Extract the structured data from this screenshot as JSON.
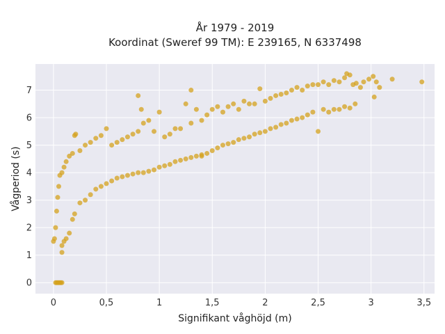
{
  "chart_data": {
    "type": "scatter",
    "title_line1": "År 1979 - 2019",
    "title_line2": "Koordinat (Sweref 99 TM): E 239165, N 6337498",
    "xlabel": "Signifikant våghöjd (m)",
    "ylabel": "Vågperiod (s)",
    "xlim": [
      -0.17,
      3.6
    ],
    "ylim": [
      -0.4,
      7.95
    ],
    "x_ticks": [
      0,
      0.5,
      1,
      1.5,
      2,
      2.5,
      3,
      3.5
    ],
    "x_tick_labels": [
      "0",
      "0,5",
      "1",
      "1,5",
      "2",
      "2,5",
      "3",
      "3,5"
    ],
    "y_ticks": [
      0,
      1,
      2,
      3,
      4,
      5,
      6,
      7
    ],
    "y_tick_labels": [
      "0",
      "1",
      "2",
      "3",
      "4",
      "5",
      "6",
      "7"
    ],
    "grid": true,
    "marker_color": "#D4A21E",
    "background_color": "#E9E9F1",
    "series": [
      {
        "points": [
          [
            0.02,
            0.0
          ],
          [
            0.03,
            0.0
          ],
          [
            0.04,
            0.0
          ],
          [
            0.05,
            0.0
          ],
          [
            0.06,
            0.0
          ],
          [
            0.07,
            0.0
          ],
          [
            0.08,
            0.0
          ],
          [
            0.0,
            1.5
          ],
          [
            0.01,
            1.6
          ],
          [
            0.02,
            2.0
          ],
          [
            0.03,
            2.6
          ],
          [
            0.04,
            3.1
          ],
          [
            0.05,
            3.5
          ],
          [
            0.06,
            3.9
          ],
          [
            0.08,
            1.1
          ],
          [
            0.08,
            1.35
          ],
          [
            0.1,
            1.5
          ],
          [
            0.12,
            1.6
          ],
          [
            0.15,
            1.8
          ],
          [
            0.18,
            2.3
          ],
          [
            0.2,
            2.5
          ],
          [
            0.08,
            4.0
          ],
          [
            0.1,
            4.2
          ],
          [
            0.12,
            4.4
          ],
          [
            0.15,
            4.6
          ],
          [
            0.18,
            4.7
          ],
          [
            0.2,
            5.35
          ],
          [
            0.21,
            5.4
          ],
          [
            0.25,
            2.9
          ],
          [
            0.3,
            3.0
          ],
          [
            0.35,
            3.2
          ],
          [
            0.4,
            3.4
          ],
          [
            0.45,
            3.5
          ],
          [
            0.5,
            3.6
          ],
          [
            0.25,
            4.8
          ],
          [
            0.3,
            5.0
          ],
          [
            0.35,
            5.1
          ],
          [
            0.4,
            5.25
          ],
          [
            0.45,
            5.35
          ],
          [
            0.5,
            5.6
          ],
          [
            0.55,
            3.7
          ],
          [
            0.6,
            3.8
          ],
          [
            0.65,
            3.85
          ],
          [
            0.7,
            3.9
          ],
          [
            0.75,
            3.95
          ],
          [
            0.8,
            4.0
          ],
          [
            0.55,
            5.0
          ],
          [
            0.6,
            5.1
          ],
          [
            0.65,
            5.2
          ],
          [
            0.7,
            5.3
          ],
          [
            0.75,
            5.4
          ],
          [
            0.8,
            5.5
          ],
          [
            0.8,
            6.8
          ],
          [
            0.83,
            6.3
          ],
          [
            0.85,
            5.8
          ],
          [
            0.9,
            5.9
          ],
          [
            0.95,
            5.5
          ],
          [
            1.0,
            6.2
          ],
          [
            0.85,
            4.0
          ],
          [
            0.9,
            4.05
          ],
          [
            0.95,
            4.1
          ],
          [
            1.0,
            4.2
          ],
          [
            1.05,
            4.25
          ],
          [
            1.1,
            4.3
          ],
          [
            1.05,
            5.3
          ],
          [
            1.1,
            5.4
          ],
          [
            1.15,
            5.6
          ],
          [
            1.2,
            5.6
          ],
          [
            1.25,
            6.5
          ],
          [
            1.3,
            5.8
          ],
          [
            1.15,
            4.4
          ],
          [
            1.2,
            4.45
          ],
          [
            1.25,
            4.5
          ],
          [
            1.3,
            4.55
          ],
          [
            1.35,
            4.6
          ],
          [
            1.4,
            4.65
          ],
          [
            1.3,
            7.0
          ],
          [
            1.35,
            6.3
          ],
          [
            1.4,
            5.9
          ],
          [
            1.45,
            6.1
          ],
          [
            1.5,
            6.3
          ],
          [
            1.55,
            6.4
          ],
          [
            1.4,
            4.6
          ],
          [
            1.45,
            4.7
          ],
          [
            1.5,
            4.8
          ],
          [
            1.55,
            4.9
          ],
          [
            1.6,
            5.0
          ],
          [
            1.65,
            5.05
          ],
          [
            1.6,
            6.2
          ],
          [
            1.65,
            6.4
          ],
          [
            1.7,
            6.5
          ],
          [
            1.75,
            6.3
          ],
          [
            1.8,
            6.6
          ],
          [
            1.85,
            6.5
          ],
          [
            1.7,
            5.1
          ],
          [
            1.75,
            5.2
          ],
          [
            1.8,
            5.25
          ],
          [
            1.85,
            5.3
          ],
          [
            1.9,
            5.4
          ],
          [
            1.95,
            5.45
          ],
          [
            1.9,
            6.5
          ],
          [
            1.95,
            7.05
          ],
          [
            2.0,
            6.6
          ],
          [
            2.05,
            6.7
          ],
          [
            2.1,
            6.8
          ],
          [
            2.15,
            6.85
          ],
          [
            2.0,
            5.5
          ],
          [
            2.05,
            5.6
          ],
          [
            2.1,
            5.65
          ],
          [
            2.15,
            5.75
          ],
          [
            2.2,
            5.8
          ],
          [
            2.25,
            5.9
          ],
          [
            2.2,
            6.9
          ],
          [
            2.25,
            7.0
          ],
          [
            2.3,
            7.1
          ],
          [
            2.35,
            7.0
          ],
          [
            2.4,
            7.15
          ],
          [
            2.45,
            7.2
          ],
          [
            2.3,
            5.95
          ],
          [
            2.35,
            6.0
          ],
          [
            2.4,
            6.1
          ],
          [
            2.45,
            6.2
          ],
          [
            2.5,
            5.5
          ],
          [
            2.55,
            6.3
          ],
          [
            2.5,
            7.2
          ],
          [
            2.55,
            7.3
          ],
          [
            2.6,
            7.2
          ],
          [
            2.65,
            7.35
          ],
          [
            2.7,
            7.3
          ],
          [
            2.75,
            7.45
          ],
          [
            2.6,
            6.2
          ],
          [
            2.65,
            6.3
          ],
          [
            2.7,
            6.3
          ],
          [
            2.75,
            6.4
          ],
          [
            2.8,
            6.35
          ],
          [
            2.85,
            6.5
          ],
          [
            2.77,
            7.6
          ],
          [
            2.8,
            7.55
          ],
          [
            2.83,
            7.2
          ],
          [
            2.86,
            7.25
          ],
          [
            2.9,
            7.1
          ],
          [
            2.93,
            7.3
          ],
          [
            2.98,
            7.4
          ],
          [
            3.02,
            7.5
          ],
          [
            3.05,
            7.3
          ],
          [
            3.08,
            7.1
          ],
          [
            3.03,
            6.75
          ],
          [
            3.2,
            7.4
          ],
          [
            3.48,
            7.3
          ]
        ]
      }
    ]
  }
}
